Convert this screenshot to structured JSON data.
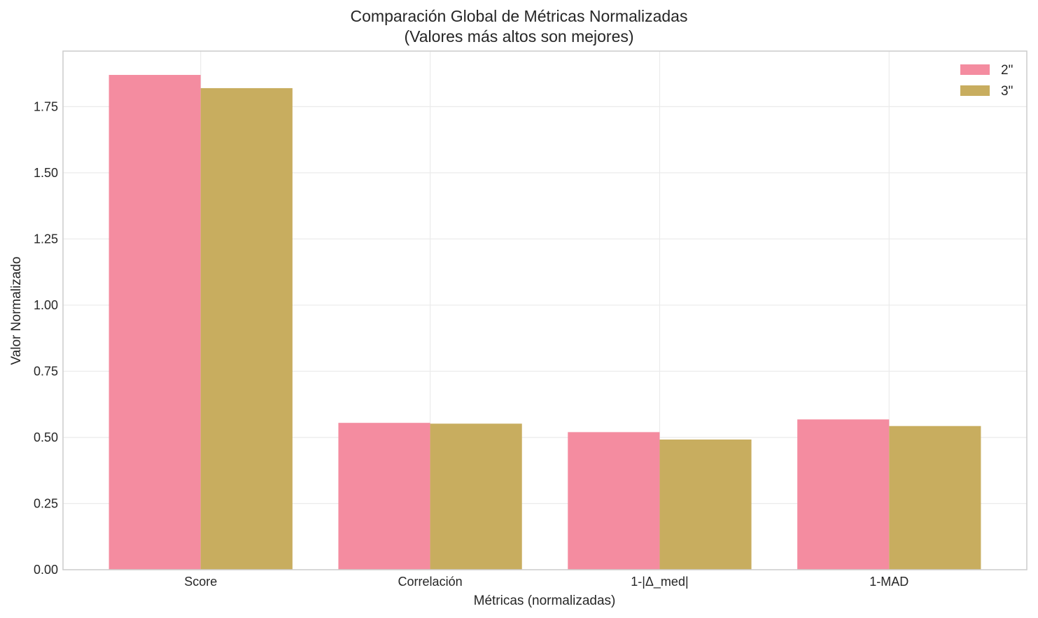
{
  "chart_data": {
    "type": "bar",
    "title": "Comparación Global de Métricas Normalizadas",
    "subtitle": "(Valores más altos son mejores)",
    "xlabel": "Métricas (normalizadas)",
    "ylabel": "Valor Normalizado",
    "categories": [
      "Score",
      "Correlación",
      "1-|Δ_med|",
      "1-MAD"
    ],
    "series": [
      {
        "name": "2\"",
        "values": [
          1.87,
          0.555,
          0.52,
          0.568
        ],
        "color": "#f48ca0"
      },
      {
        "name": "3\"",
        "values": [
          1.82,
          0.552,
          0.492,
          0.543
        ],
        "color": "#c8ad5f"
      }
    ],
    "ylim": [
      0,
      1.96
    ],
    "yticks": [
      "0.00",
      "0.25",
      "0.50",
      "0.75",
      "1.00",
      "1.25",
      "1.50",
      "1.75"
    ],
    "grid": true,
    "legend_position": "top-right",
    "colors": {
      "grid": "#ebebeb",
      "frame": "#cccccc"
    }
  }
}
